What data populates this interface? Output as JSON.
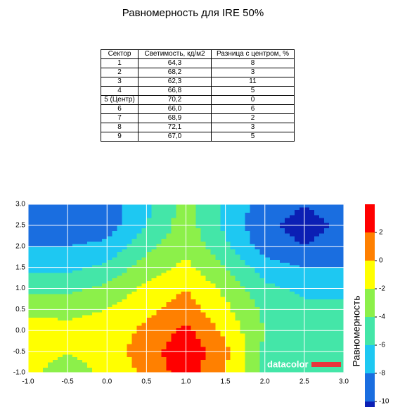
{
  "title": "Равномерность для IRE 50%",
  "table": {
    "header": [
      "Сектор",
      "Светимость, кд/м2",
      "Разница с центром, %"
    ],
    "rows": [
      [
        "1",
        "64,3",
        "8"
      ],
      [
        "2",
        "68,2",
        "3"
      ],
      [
        "3",
        "62,3",
        "11"
      ],
      [
        "4",
        "66,8",
        "5"
      ],
      [
        "5 (Центр)",
        "70,2",
        "0"
      ],
      [
        "6",
        "66,0",
        "6"
      ],
      [
        "7",
        "68,9",
        "2"
      ],
      [
        "8",
        "72,1",
        "3"
      ],
      [
        "9",
        "67,0",
        "5"
      ]
    ]
  },
  "chart_data": {
    "type": "contour",
    "x": [
      -1,
      -0.5,
      0,
      0.5,
      1,
      1.5,
      2,
      2.5,
      3
    ],
    "y": [
      -1,
      -0.5,
      0,
      0.5,
      1,
      1.5,
      2,
      2.5,
      3
    ],
    "z": [
      [
        -1.5,
        -3,
        -1.5,
        0.5,
        3,
        0,
        -4.5,
        -5,
        -5
      ],
      [
        -1,
        -2,
        -1,
        1,
        3.5,
        0.5,
        -4.5,
        -5,
        -5
      ],
      [
        -1,
        -1.5,
        -1.2,
        0.5,
        2.5,
        -0.5,
        -4,
        -5,
        -5
      ],
      [
        -2.5,
        -2.5,
        -2,
        -0.5,
        1,
        -1.5,
        -4.5,
        -5.5,
        -5.5
      ],
      [
        -4.5,
        -4.5,
        -3.5,
        -1.5,
        0,
        -2.5,
        -5.5,
        -6.5,
        -6.5
      ],
      [
        -6.5,
        -6.5,
        -5.5,
        -3,
        -1.5,
        -4,
        -7,
        -8,
        -8
      ],
      [
        -8,
        -8,
        -7.5,
        -4.5,
        -2.5,
        -5.5,
        -9,
        -10,
        -9
      ],
      [
        -9,
        -9,
        -9,
        -6,
        -3,
        -6.5,
        -9.5,
        -10.8,
        -9.5
      ],
      [
        -9,
        -9,
        -9,
        -6.5,
        -3,
        -6.5,
        -9,
        -10,
        -9
      ]
    ],
    "xlim": [
      -1,
      3
    ],
    "ylim": [
      -1,
      3
    ],
    "xticks": [
      {
        "value": -1,
        "label": "-1.0"
      },
      {
        "value": -0.5,
        "label": "-0.5"
      },
      {
        "value": 0,
        "label": "0.0"
      },
      {
        "value": 0.5,
        "label": "0.5"
      },
      {
        "value": 1,
        "label": "1.0"
      },
      {
        "value": 1.5,
        "label": "1.5"
      },
      {
        "value": 2,
        "label": "2.0"
      },
      {
        "value": 2.5,
        "label": "2.5"
      },
      {
        "value": 3,
        "label": "3.0"
      }
    ],
    "yticks": [
      {
        "value": -1,
        "label": "-1.0"
      },
      {
        "value": -0.5,
        "label": "-0.5"
      },
      {
        "value": 0,
        "label": "0.0"
      },
      {
        "value": 0.5,
        "label": "0.5"
      },
      {
        "value": 1,
        "label": "1.0"
      },
      {
        "value": 1.5,
        "label": "1.5"
      },
      {
        "value": 2,
        "label": "2.0"
      },
      {
        "value": 2.5,
        "label": "2.5"
      },
      {
        "value": 3,
        "label": "3.0"
      }
    ],
    "levels": [
      -10,
      -8,
      -6,
      -4,
      -2,
      0,
      2
    ],
    "colors": [
      "#0b1fb4",
      "#1a6ee0",
      "#1ec8f2",
      "#44e6a8",
      "#8cf04a",
      "#ffff00",
      "#ff8000",
      "#ff0000"
    ],
    "clim": [
      -10.4,
      4
    ],
    "cticks": [
      2,
      0,
      -2,
      -4,
      -6,
      -8,
      -10
    ],
    "colorbar_label": "Равномерность",
    "watermark": "datacolor",
    "grid": true
  }
}
